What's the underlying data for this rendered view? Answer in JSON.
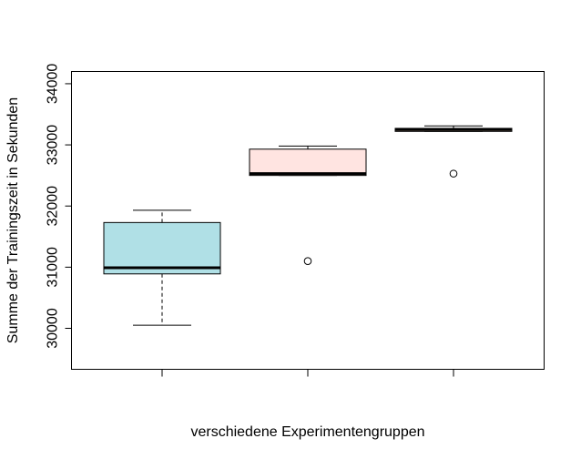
{
  "chart_data": {
    "type": "boxplot",
    "title": "",
    "xlabel": "verschiedene Experimentengruppen",
    "ylabel": "Summe der Trainingszeit in Sekunden",
    "ylim": [
      29330,
      34200
    ],
    "y_ticks": [
      {
        "value": 30000,
        "label": "30000"
      },
      {
        "value": 31000,
        "label": "31000"
      },
      {
        "value": 32000,
        "label": "32000"
      },
      {
        "value": 33000,
        "label": "33000"
      },
      {
        "value": 34000,
        "label": "34000"
      }
    ],
    "x_tick_labels_visible": false,
    "series": [
      {
        "fill": "#b0e0e6",
        "stats": {
          "min": 30050,
          "q1": 30890,
          "median": 30990,
          "q3": 31730,
          "max": 31930
        },
        "outliers": []
      },
      {
        "fill": "#ffe4e1",
        "stats": {
          "min": 32500,
          "q1": 32500,
          "median": 32530,
          "q3": 32930,
          "max": 32980
        },
        "outliers": [
          31100
        ]
      },
      {
        "fill": "#ffdab9",
        "stats": {
          "min": 33220,
          "q1": 33220,
          "median": 33250,
          "q3": 33270,
          "max": 33310
        },
        "outliers": [
          32530
        ]
      }
    ]
  }
}
